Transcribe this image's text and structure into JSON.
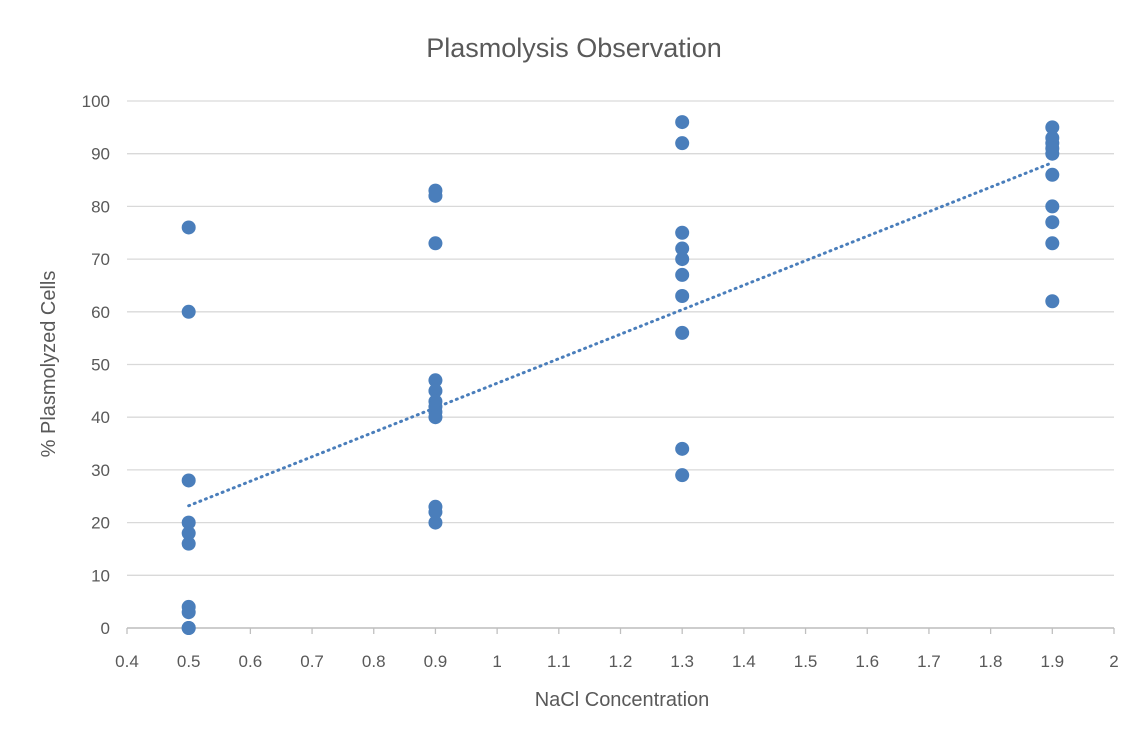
{
  "chart_data": {
    "type": "scatter",
    "title": "Plasmolysis Observation",
    "xlabel": "NaCl Concentration",
    "ylabel": "% Plasmolyzed Cells",
    "xlim": [
      0.4,
      2
    ],
    "ylim": [
      0,
      100
    ],
    "xticks": [
      "0.4",
      "0.5",
      "0.6",
      "0.7",
      "0.8",
      "0.9",
      "1",
      "1.1",
      "1.2",
      "1.3",
      "1.4",
      "1.5",
      "1.6",
      "1.7",
      "1.8",
      "1.9",
      "2"
    ],
    "yticks": [
      "0",
      "10",
      "20",
      "30",
      "40",
      "50",
      "60",
      "70",
      "80",
      "90",
      "100"
    ],
    "grid": "horizontal",
    "series": [
      {
        "name": "% Plasmolyzed Cells",
        "color": "#4a7ebb",
        "points": [
          [
            0.5,
            76
          ],
          [
            0.5,
            60
          ],
          [
            0.5,
            28
          ],
          [
            0.5,
            20
          ],
          [
            0.5,
            18
          ],
          [
            0.5,
            16
          ],
          [
            0.5,
            4
          ],
          [
            0.5,
            3
          ],
          [
            0.5,
            0
          ],
          [
            0.5,
            0
          ],
          [
            0.9,
            83
          ],
          [
            0.9,
            82
          ],
          [
            0.9,
            73
          ],
          [
            0.9,
            47
          ],
          [
            0.9,
            45
          ],
          [
            0.9,
            43
          ],
          [
            0.9,
            42
          ],
          [
            0.9,
            41
          ],
          [
            0.9,
            40
          ],
          [
            0.9,
            23
          ],
          [
            0.9,
            22
          ],
          [
            0.9,
            20
          ],
          [
            1.3,
            96
          ],
          [
            1.3,
            92
          ],
          [
            1.3,
            75
          ],
          [
            1.3,
            72
          ],
          [
            1.3,
            70
          ],
          [
            1.3,
            67
          ],
          [
            1.3,
            63
          ],
          [
            1.3,
            56
          ],
          [
            1.3,
            34
          ],
          [
            1.3,
            29
          ],
          [
            1.9,
            95
          ],
          [
            1.9,
            93
          ],
          [
            1.9,
            92
          ],
          [
            1.9,
            91
          ],
          [
            1.9,
            90
          ],
          [
            1.9,
            86
          ],
          [
            1.9,
            80
          ],
          [
            1.9,
            77
          ],
          [
            1.9,
            73
          ],
          [
            1.9,
            62
          ]
        ]
      }
    ],
    "trendline": {
      "type": "linear",
      "color": "#4a7ebb",
      "from": [
        0.5,
        23.2
      ],
      "to": [
        1.9,
        88.3
      ]
    }
  }
}
